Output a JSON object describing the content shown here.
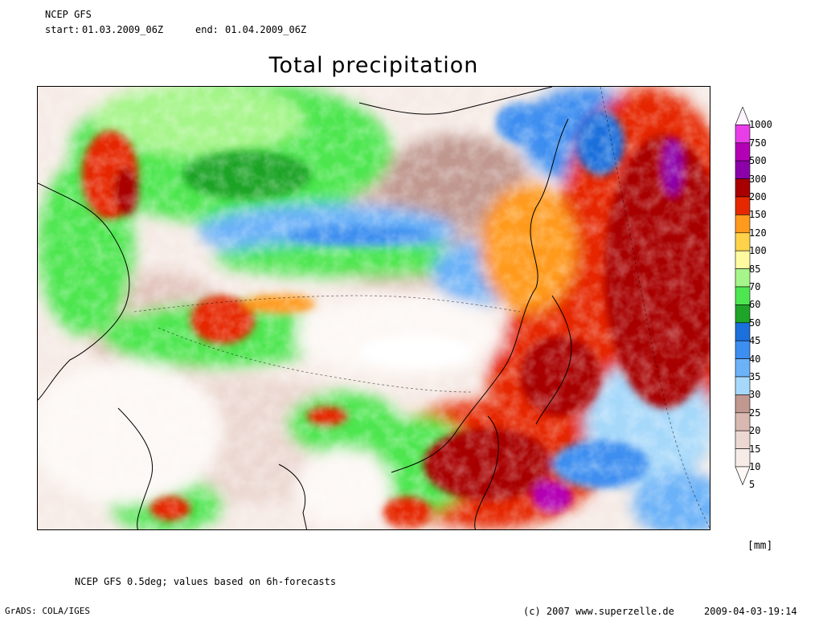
{
  "header": {
    "model": "NCEP GFS",
    "start_label": "start:",
    "start_value": "01.03.2009_06Z",
    "end_label": "end:",
    "end_value": "01.04.2009_06Z"
  },
  "title": "Total precipitation",
  "legend": {
    "unit": "[mm]",
    "levels": [
      {
        "label": "1000",
        "color": "#fff4ff"
      },
      {
        "label": "750",
        "color": "#e83ee8"
      },
      {
        "label": "500",
        "color": "#b400b4"
      },
      {
        "label": "300",
        "color": "#8c00aa"
      },
      {
        "label": "200",
        "color": "#a80000"
      },
      {
        "label": "150",
        "color": "#e62800"
      },
      {
        "label": "120",
        "color": "#ff9a1e"
      },
      {
        "label": "100",
        "color": "#ffd24a"
      },
      {
        "label": "85",
        "color": "#fffaa0"
      },
      {
        "label": "70",
        "color": "#a6f58a"
      },
      {
        "label": "60",
        "color": "#4ee650"
      },
      {
        "label": "50",
        "color": "#1ea428"
      },
      {
        "label": "45",
        "color": "#1b70dc"
      },
      {
        "label": "40",
        "color": "#3c8ef0"
      },
      {
        "label": "35",
        "color": "#6cb2f8"
      },
      {
        "label": "30",
        "color": "#a6d8fa"
      },
      {
        "label": "25",
        "color": "#c09890"
      },
      {
        "label": "20",
        "color": "#d8b8b0"
      },
      {
        "label": "15",
        "color": "#ecd8d2"
      },
      {
        "label": "10",
        "color": "#f6ebe6"
      },
      {
        "label": "5",
        "color": "#fdf8f5"
      }
    ]
  },
  "footer": {
    "note": "NCEP GFS 0.5deg; values based on 6h-forecasts",
    "credit": "GrADS: COLA/IGES",
    "copyright": "(c) 2007 www.superzelle.de",
    "timestamp": "2009-04-03-19:14"
  }
}
